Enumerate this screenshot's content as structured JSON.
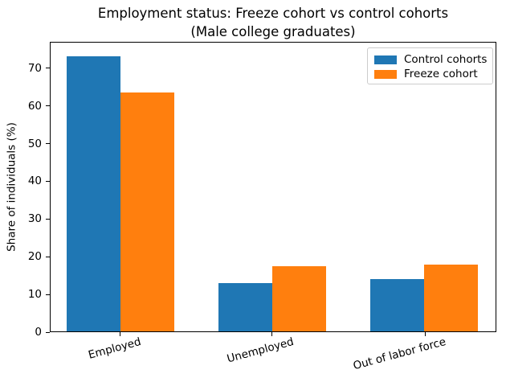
{
  "chart_data": {
    "type": "bar",
    "title": "Employment status: Freeze cohort vs control cohorts",
    "subtitle": "(Male college graduates)",
    "ylabel": "Share of individuals (%)",
    "categories": [
      "Employed",
      "Unemployed",
      "Out of labor force"
    ],
    "series": [
      {
        "name": "Control cohorts",
        "color": "#1f77b4",
        "values": [
          73.3,
          12.8,
          14.0
        ]
      },
      {
        "name": "Freeze cohort",
        "color": "#ff7f0e",
        "values": [
          63.7,
          17.3,
          17.9
        ]
      }
    ],
    "yticks": [
      0,
      10,
      20,
      30,
      40,
      50,
      60,
      70
    ],
    "ylim": [
      0,
      77
    ],
    "xlabel": "",
    "xtick_rotation_deg": 15,
    "legend_position": "upper right",
    "grid": false
  }
}
